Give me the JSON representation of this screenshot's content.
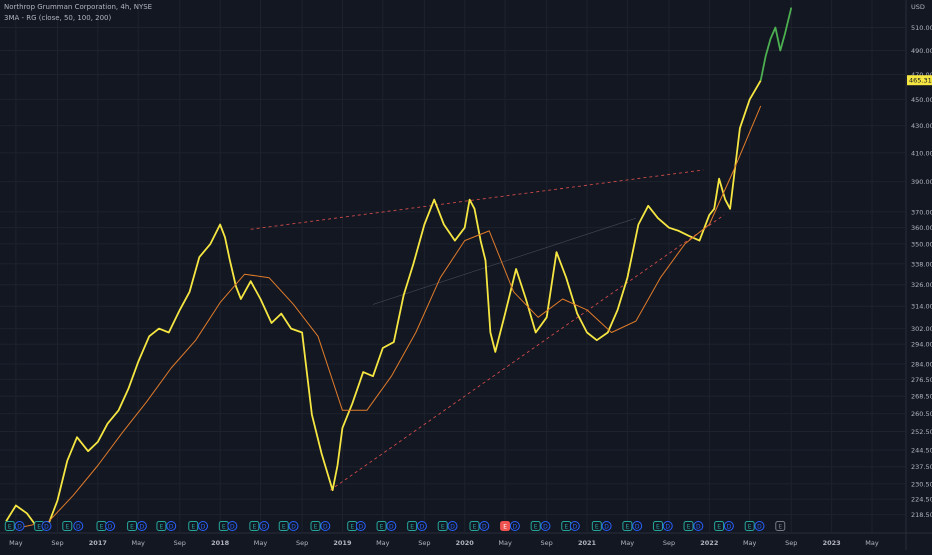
{
  "header": {
    "symbol_line": "Northrop Grumman Corporation, 4h, NYSE",
    "indicator_line": "3MA - RG (close, 50, 100, 200)"
  },
  "price_axis": {
    "currency": "USD",
    "last_price_label": "465.31",
    "last_price_color": "#f5e642"
  },
  "colors": {
    "background": "#131722",
    "price_up_series": "#f5e642",
    "price_recent_series": "#4caf50",
    "moving_average": "#e07b2a",
    "resistance_line": "#ef5350",
    "support_line": "#ef5350",
    "mid_line": "#787b86",
    "earnings_badge": "#26a69a",
    "dividend_badge": "#2962ff"
  },
  "chart_data": {
    "type": "line",
    "title": "Northrop Grumman Corporation, 4h, NYSE",
    "xlabel": "",
    "ylabel": "",
    "y_scale": "log",
    "ylim": [
      212,
      535
    ],
    "y_ticks": [
      218.5,
      224.5,
      230.5,
      237.5,
      244.5,
      252.5,
      260.5,
      268.5,
      276.5,
      284.0,
      294.0,
      302.0,
      314.0,
      326.0,
      338.0,
      350.0,
      360.0,
      370.0,
      390.0,
      410.0,
      430.0,
      450.0,
      470.0,
      490.0,
      510.0
    ],
    "x_ticks": [
      "May",
      "Sep",
      "2017",
      "May",
      "Sep",
      "2018",
      "May",
      "Sep",
      "2019",
      "May",
      "Sep",
      "2020",
      "May",
      "Sep",
      "2021",
      "May",
      "Sep",
      "2022",
      "May",
      "Sep",
      "2023",
      "May"
    ],
    "x_tick_years": [
      2016.33,
      2016.67,
      2017.0,
      2017.33,
      2017.67,
      2018.0,
      2018.33,
      2018.67,
      2019.0,
      2019.33,
      2019.67,
      2020.0,
      2020.33,
      2020.67,
      2021.0,
      2021.33,
      2021.67,
      2022.0,
      2022.33,
      2022.67,
      2023.0,
      2023.33
    ],
    "xlim": [
      2016.2,
      2023.6
    ],
    "series": [
      {
        "kind": "price",
        "x": [
          2016.25,
          2016.33,
          2016.42,
          2016.5,
          2016.58,
          2016.67,
          2016.75,
          2016.83,
          2016.92,
          2017.0,
          2017.08,
          2017.17,
          2017.25,
          2017.33,
          2017.42,
          2017.5,
          2017.58,
          2017.67,
          2017.75,
          2017.83,
          2017.92,
          2018.0,
          2018.04,
          2018.08,
          2018.13,
          2018.17,
          2018.25,
          2018.33,
          2018.42,
          2018.5,
          2018.58,
          2018.67,
          2018.75,
          2018.83,
          2018.92,
          2018.96,
          2019.0,
          2019.08,
          2019.17,
          2019.25,
          2019.33,
          2019.42,
          2019.5,
          2019.58,
          2019.67,
          2019.75,
          2019.83,
          2019.92,
          2020.0,
          2020.04,
          2020.08,
          2020.13,
          2020.17,
          2020.21,
          2020.25,
          2020.33,
          2020.42,
          2020.5,
          2020.58,
          2020.67,
          2020.75,
          2020.83,
          2020.92,
          2021.0,
          2021.08,
          2021.17,
          2021.25,
          2021.33,
          2021.42,
          2021.5,
          2021.58,
          2021.67,
          2021.75,
          2021.83,
          2021.92,
          2022.0,
          2022.04,
          2022.08,
          2022.13,
          2022.17,
          2022.25,
          2022.33,
          2022.42
        ],
        "y": [
          216,
          222,
          219,
          214,
          213,
          224,
          240,
          250,
          244,
          248,
          256,
          262,
          272,
          285,
          298,
          302,
          300,
          312,
          322,
          342,
          350,
          362,
          354,
          340,
          325,
          318,
          328,
          318,
          305,
          310,
          302,
          300,
          260,
          243,
          228,
          238,
          254,
          265,
          280,
          278,
          292,
          295,
          320,
          338,
          362,
          378,
          362,
          352,
          360,
          378,
          372,
          352,
          340,
          300,
          290,
          310,
          335,
          318,
          300,
          308,
          345,
          330,
          310,
          300,
          296,
          300,
          312,
          330,
          362,
          374,
          366,
          360,
          358,
          355,
          352,
          368,
          372,
          392,
          378,
          372,
          428,
          450,
          465
        ],
        "color": "#f5e642"
      },
      {
        "kind": "price_recent",
        "x": [
          2022.42,
          2022.46,
          2022.5,
          2022.54,
          2022.58,
          2022.62,
          2022.67
        ],
        "y": [
          465,
          485,
          500,
          510,
          490,
          505,
          528
        ],
        "color": "#4caf50"
      },
      {
        "kind": "moving_average",
        "x": [
          2016.4,
          2016.6,
          2016.8,
          2017.0,
          2017.2,
          2017.4,
          2017.6,
          2017.8,
          2018.0,
          2018.2,
          2018.4,
          2018.6,
          2018.8,
          2019.0,
          2019.2,
          2019.4,
          2019.6,
          2019.8,
          2020.0,
          2020.2,
          2020.4,
          2020.6,
          2020.8,
          2021.0,
          2021.2,
          2021.4,
          2021.6,
          2021.8,
          2022.0,
          2022.2,
          2022.42
        ],
        "y": [
          214,
          216,
          226,
          238,
          252,
          266,
          282,
          296,
          316,
          332,
          330,
          315,
          298,
          262,
          262,
          278,
          300,
          330,
          352,
          358,
          322,
          308,
          318,
          312,
          300,
          306,
          330,
          350,
          362,
          398,
          445
        ],
        "color": "#e07b2a"
      }
    ],
    "trendlines": [
      {
        "name": "resistance",
        "from": [
          2018.25,
          359
        ],
        "to": [
          2021.95,
          398
        ],
        "style": "dashed",
        "color": "#ef5350"
      },
      {
        "name": "support",
        "from": [
          2018.9,
          228
        ],
        "to": [
          2022.12,
          368
        ],
        "style": "dashed",
        "color": "#ef5350"
      },
      {
        "name": "mid",
        "from": [
          2019.25,
          315
        ],
        "to": [
          2021.4,
          366
        ],
        "style": "solid",
        "color": "#787b86"
      }
    ],
    "event_badges": [
      {
        "label": "E",
        "kind": "earnings",
        "year": 2016.28
      },
      {
        "label": "D",
        "kind": "dividend",
        "year": 2016.36
      },
      {
        "label": "E",
        "kind": "earnings",
        "year": 2016.52
      },
      {
        "label": "D",
        "kind": "dividend",
        "year": 2016.58
      },
      {
        "label": "E",
        "kind": "earnings",
        "year": 2016.75
      },
      {
        "label": "D",
        "kind": "dividend",
        "year": 2016.84
      },
      {
        "label": "E",
        "kind": "earnings",
        "year": 2017.03
      },
      {
        "label": "D",
        "kind": "dividend",
        "year": 2017.1
      },
      {
        "label": "E",
        "kind": "earnings",
        "year": 2017.28
      },
      {
        "label": "D",
        "kind": "dividend",
        "year": 2017.36
      },
      {
        "label": "E",
        "kind": "earnings",
        "year": 2017.52
      },
      {
        "label": "D",
        "kind": "dividend",
        "year": 2017.6
      },
      {
        "label": "E",
        "kind": "earnings",
        "year": 2017.78
      },
      {
        "label": "D",
        "kind": "dividend",
        "year": 2017.86
      },
      {
        "label": "E",
        "kind": "earnings",
        "year": 2018.03
      },
      {
        "label": "D",
        "kind": "dividend",
        "year": 2018.1
      },
      {
        "label": "E",
        "kind": "earnings",
        "year": 2018.28
      },
      {
        "label": "D",
        "kind": "dividend",
        "year": 2018.36
      },
      {
        "label": "E",
        "kind": "earnings",
        "year": 2018.52
      },
      {
        "label": "D",
        "kind": "dividend",
        "year": 2018.6
      },
      {
        "label": "E",
        "kind": "earnings",
        "year": 2018.78
      },
      {
        "label": "D",
        "kind": "dividend",
        "year": 2018.86
      },
      {
        "label": "E",
        "kind": "earnings",
        "year": 2019.08
      },
      {
        "label": "D",
        "kind": "dividend",
        "year": 2019.15
      },
      {
        "label": "E",
        "kind": "earnings",
        "year": 2019.32
      },
      {
        "label": "D",
        "kind": "dividend",
        "year": 2019.4
      },
      {
        "label": "E",
        "kind": "earnings",
        "year": 2019.57
      },
      {
        "label": "D",
        "kind": "dividend",
        "year": 2019.65
      },
      {
        "label": "E",
        "kind": "earnings",
        "year": 2019.82
      },
      {
        "label": "D",
        "kind": "dividend",
        "year": 2019.9
      },
      {
        "label": "E",
        "kind": "earnings",
        "year": 2020.08
      },
      {
        "label": "D",
        "kind": "dividend",
        "year": 2020.16
      },
      {
        "label": "E",
        "kind": "earnings_miss",
        "year": 2020.33
      },
      {
        "label": "D",
        "kind": "dividend",
        "year": 2020.41
      },
      {
        "label": "E",
        "kind": "earnings",
        "year": 2020.58
      },
      {
        "label": "D",
        "kind": "dividend",
        "year": 2020.66
      },
      {
        "label": "E",
        "kind": "earnings",
        "year": 2020.83
      },
      {
        "label": "D",
        "kind": "dividend",
        "year": 2020.9
      },
      {
        "label": "E",
        "kind": "earnings",
        "year": 2021.08
      },
      {
        "label": "D",
        "kind": "dividend",
        "year": 2021.16
      },
      {
        "label": "E",
        "kind": "earnings",
        "year": 2021.33
      },
      {
        "label": "D",
        "kind": "dividend",
        "year": 2021.41
      },
      {
        "label": "E",
        "kind": "earnings",
        "year": 2021.58
      },
      {
        "label": "D",
        "kind": "dividend",
        "year": 2021.66
      },
      {
        "label": "E",
        "kind": "earnings",
        "year": 2021.83
      },
      {
        "label": "D",
        "kind": "dividend",
        "year": 2021.91
      },
      {
        "label": "E",
        "kind": "earnings",
        "year": 2022.08
      },
      {
        "label": "D",
        "kind": "dividend",
        "year": 2022.16
      },
      {
        "label": "E",
        "kind": "earnings",
        "year": 2022.33
      },
      {
        "label": "D",
        "kind": "dividend",
        "year": 2022.41
      },
      {
        "label": "E",
        "kind": "upcoming",
        "year": 2022.58
      }
    ],
    "grid": true,
    "legend": "none"
  }
}
